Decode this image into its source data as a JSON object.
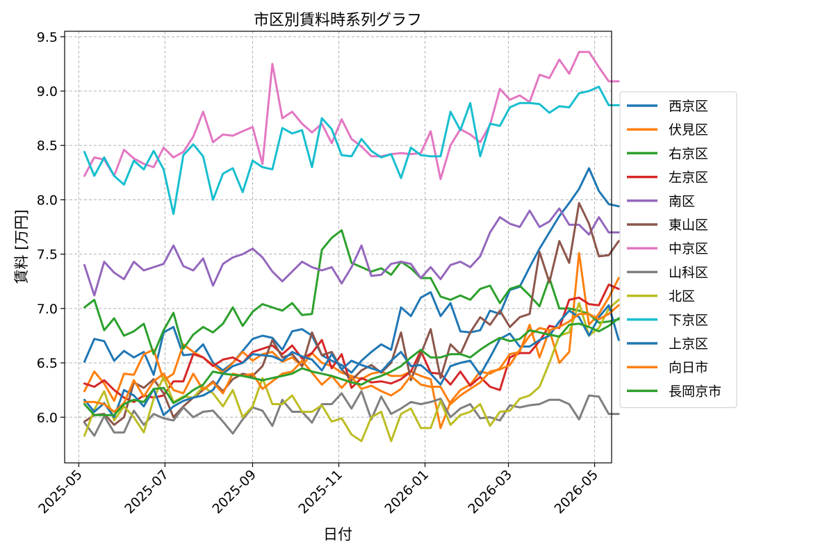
{
  "chart_data": {
    "type": "line",
    "title": "市区別賃料時系列グラフ",
    "xlabel": "日付",
    "ylabel": "賃料 [万円]",
    "xlim": [
      "2025-04-21",
      "2026-05-13"
    ],
    "ylim": [
      5.58,
      9.55
    ],
    "x_ticks": [
      "2025-05",
      "2025-07",
      "2025-09",
      "2025-11",
      "2026-01",
      "2026-03",
      "2026-05"
    ],
    "x_tick_dates": [
      "2025-05-01",
      "2025-07-01",
      "2025-09-01",
      "2025-11-01",
      "2026-01-01",
      "2026-03-01",
      "2026-05-01"
    ],
    "y_ticks": [
      6.0,
      6.5,
      7.0,
      7.5,
      8.0,
      8.5,
      9.0,
      9.5
    ],
    "y_tick_labels": [
      "6.0",
      "6.5",
      "7.0",
      "7.5",
      "8.0",
      "8.5",
      "9.0",
      "9.5"
    ],
    "grid": true,
    "legend_position": "right-outside",
    "x_start": "2025-05-05",
    "x_step_days": 7,
    "series": [
      {
        "name": "西京区",
        "color": "#1f77b4",
        "values": [
          6.51,
          6.72,
          6.7,
          6.52,
          6.61,
          6.55,
          6.6,
          6.39,
          6.78,
          6.83,
          6.57,
          6.58,
          6.67,
          6.5,
          6.43,
          6.5,
          6.61,
          6.72,
          6.75,
          6.73,
          6.62,
          6.79,
          6.81,
          6.75,
          6.57,
          6.52,
          6.48,
          6.41,
          6.52,
          6.6,
          6.67,
          6.62,
          7.01,
          6.93,
          7.1,
          7.15,
          6.93,
          7.05,
          6.79,
          6.78,
          6.8,
          6.98,
          6.95,
          7.17,
          7.2,
          7.38,
          7.55,
          7.7,
          7.85,
          7.97,
          8.1,
          8.29,
          8.08,
          7.96,
          7.94
        ]
      },
      {
        "name": "伏見区",
        "color": "#ff7f0e",
        "values": [
          6.24,
          6.42,
          6.31,
          6.15,
          6.4,
          6.39,
          6.58,
          6.62,
          6.34,
          6.4,
          6.67,
          6.6,
          6.55,
          6.48,
          6.41,
          6.5,
          6.6,
          6.52,
          6.58,
          6.6,
          6.51,
          6.55,
          6.47,
          6.59,
          6.5,
          6.47,
          6.41,
          6.38,
          6.35,
          6.4,
          6.42,
          6.38,
          6.38,
          6.42,
          6.38,
          6.35,
          5.9,
          6.14,
          6.25,
          6.3,
          6.42,
          6.4,
          6.45,
          6.58,
          6.6,
          6.85,
          6.55,
          6.8,
          6.5,
          6.6,
          7.51,
          6.85,
          6.95,
          7.1,
          7.28
        ]
      },
      {
        "name": "右京区",
        "color": "#2ca02c",
        "values": [
          7.01,
          7.08,
          6.8,
          6.91,
          6.75,
          6.79,
          6.86,
          6.58,
          6.8,
          6.96,
          6.63,
          6.76,
          6.83,
          6.78,
          6.86,
          7.01,
          6.84,
          6.97,
          7.04,
          7.01,
          6.98,
          7.05,
          6.94,
          6.95,
          7.54,
          7.65,
          7.72,
          7.42,
          7.38,
          7.34,
          7.37,
          7.31,
          7.43,
          7.37,
          7.28,
          7.28,
          7.11,
          7.08,
          7.12,
          7.08,
          7.18,
          7.21,
          7.05,
          7.18,
          7.21,
          7.12,
          7.02,
          7.28,
          7.0,
          7.0,
          6.98,
          6.95,
          6.87,
          6.88,
          6.9
        ]
      },
      {
        "name": "左京区",
        "color": "#d62728",
        "values": [
          6.31,
          6.28,
          6.34,
          6.25,
          6.18,
          6.14,
          6.2,
          6.18,
          6.2,
          6.33,
          6.33,
          6.58,
          6.55,
          6.47,
          6.53,
          6.55,
          6.5,
          6.6,
          6.63,
          6.66,
          6.58,
          6.66,
          6.54,
          6.59,
          6.71,
          6.45,
          6.58,
          6.27,
          6.36,
          6.32,
          6.33,
          6.31,
          6.35,
          6.42,
          6.61,
          6.41,
          6.4,
          6.3,
          6.42,
          6.29,
          6.37,
          6.28,
          6.25,
          6.55,
          6.59,
          6.59,
          6.7,
          6.84,
          6.82,
          7.08,
          7.1,
          7.04,
          7.03,
          7.22,
          7.18
        ]
      },
      {
        "name": "南区",
        "color": "#9467bd",
        "values": [
          7.4,
          7.12,
          7.43,
          7.33,
          7.27,
          7.43,
          7.35,
          7.38,
          7.41,
          7.58,
          7.39,
          7.35,
          7.46,
          7.21,
          7.41,
          7.47,
          7.5,
          7.55,
          7.47,
          7.34,
          7.25,
          7.34,
          7.43,
          7.38,
          7.35,
          7.38,
          7.23,
          7.38,
          7.58,
          7.3,
          7.31,
          7.41,
          7.43,
          7.41,
          7.28,
          7.38,
          7.27,
          7.4,
          7.43,
          7.38,
          7.48,
          7.7,
          7.84,
          7.78,
          7.75,
          7.9,
          7.75,
          7.8,
          7.92,
          7.77,
          7.77,
          7.68,
          7.84,
          7.7,
          7.7
        ]
      },
      {
        "name": "東山区",
        "color": "#8c564b",
        "values": [
          5.96,
          6.02,
          6.03,
          5.93,
          6.0,
          6.32,
          6.27,
          6.35,
          6.22,
          6.0,
          6.1,
          6.18,
          6.25,
          6.33,
          6.24,
          6.35,
          6.4,
          6.38,
          6.47,
          6.71,
          6.55,
          6.58,
          6.47,
          6.78,
          6.57,
          6.6,
          6.44,
          6.34,
          6.43,
          6.48,
          6.41,
          6.5,
          6.78,
          6.34,
          6.58,
          6.81,
          6.36,
          6.67,
          6.58,
          6.78,
          6.92,
          6.85,
          6.98,
          6.83,
          6.92,
          6.95,
          7.52,
          7.24,
          7.62,
          7.42,
          7.97,
          7.78,
          7.48,
          7.49,
          7.62
        ]
      },
      {
        "name": "中京区",
        "color": "#e377c2",
        "values": [
          8.22,
          8.39,
          8.37,
          8.22,
          8.46,
          8.38,
          8.33,
          8.3,
          8.48,
          8.39,
          8.44,
          8.58,
          8.81,
          8.53,
          8.6,
          8.59,
          8.63,
          8.67,
          8.33,
          9.25,
          8.75,
          8.81,
          8.7,
          8.62,
          8.7,
          8.52,
          8.74,
          8.56,
          8.49,
          8.4,
          8.4,
          8.42,
          8.43,
          8.42,
          8.43,
          8.63,
          8.19,
          8.5,
          8.65,
          8.6,
          8.53,
          8.69,
          9.02,
          8.92,
          8.96,
          8.9,
          9.15,
          9.12,
          9.29,
          9.16,
          9.36,
          9.36,
          9.22,
          9.09,
          9.09
        ]
      },
      {
        "name": "山科区",
        "color": "#7f7f7f",
        "values": [
          5.95,
          5.83,
          6.01,
          5.86,
          5.86,
          6.06,
          5.93,
          6.03,
          5.99,
          5.97,
          6.09,
          6.0,
          6.05,
          6.06,
          5.96,
          5.85,
          5.98,
          6.09,
          6.06,
          5.92,
          6.16,
          6.05,
          6.05,
          5.95,
          6.12,
          6.12,
          6.22,
          6.08,
          6.24,
          5.98,
          6.19,
          6.03,
          6.08,
          6.14,
          6.12,
          6.14,
          6.17,
          6.0,
          6.08,
          6.12,
          5.99,
          6.0,
          5.97,
          6.11,
          6.09,
          6.11,
          6.12,
          6.16,
          6.16,
          6.12,
          5.98,
          6.2,
          6.19,
          6.03,
          6.03
        ]
      },
      {
        "name": "北区",
        "color": "#bcbd22",
        "values": [
          5.83,
          6.07,
          6.24,
          5.97,
          6.1,
          6.0,
          5.86,
          6.17,
          6.37,
          6.14,
          6.19,
          6.18,
          6.28,
          6.22,
          6.1,
          6.25,
          6.0,
          6.1,
          6.36,
          6.12,
          6.12,
          6.2,
          6.05,
          6.05,
          6.11,
          5.96,
          5.99,
          5.84,
          5.78,
          6.0,
          6.05,
          5.78,
          6.03,
          6.08,
          5.9,
          5.9,
          6.15,
          5.93,
          6.02,
          6.05,
          6.12,
          5.92,
          6.05,
          6.06,
          6.17,
          6.2,
          6.28,
          6.5,
          6.75,
          6.78,
          7.05,
          6.75,
          6.82,
          7.0,
          7.08
        ]
      },
      {
        "name": "下京区",
        "color": "#17becf",
        "values": [
          8.44,
          8.22,
          8.39,
          8.22,
          8.14,
          8.36,
          8.28,
          8.45,
          8.28,
          7.87,
          8.41,
          8.51,
          8.4,
          8.0,
          8.24,
          8.29,
          8.07,
          8.36,
          8.3,
          8.28,
          8.66,
          8.61,
          8.64,
          8.3,
          8.75,
          8.65,
          8.41,
          8.4,
          8.56,
          8.45,
          8.39,
          8.42,
          8.2,
          8.48,
          8.41,
          8.4,
          8.4,
          8.81,
          8.64,
          8.89,
          8.4,
          8.7,
          8.68,
          8.85,
          8.89,
          8.89,
          8.88,
          8.8,
          8.86,
          8.85,
          8.98,
          9.0,
          9.04,
          8.87,
          8.87
        ]
      },
      {
        "name": "上京区",
        "color": "#1f77b4",
        "values": [
          6.16,
          6.05,
          6.13,
          6.0,
          6.25,
          6.2,
          6.1,
          6.26,
          6.02,
          6.1,
          6.15,
          6.18,
          6.2,
          6.25,
          6.4,
          6.47,
          6.5,
          6.58,
          6.57,
          6.56,
          6.52,
          6.6,
          6.56,
          6.53,
          6.43,
          6.58,
          6.44,
          6.52,
          6.48,
          6.45,
          6.42,
          6.52,
          6.6,
          6.47,
          6.48,
          6.4,
          6.3,
          6.47,
          6.5,
          6.52,
          6.39,
          6.55,
          6.72,
          6.77,
          6.65,
          6.65,
          6.71,
          6.75,
          6.88,
          6.98,
          6.92,
          6.75,
          6.92,
          7.03,
          6.71
        ]
      },
      {
        "name": "向日市",
        "color": "#ff7f0e",
        "values": [
          6.14,
          6.14,
          6.12,
          6.05,
          6.13,
          6.34,
          6.19,
          6.33,
          6.4,
          6.25,
          6.22,
          6.4,
          6.25,
          6.32,
          6.22,
          6.4,
          6.38,
          6.4,
          6.26,
          6.33,
          6.4,
          6.42,
          6.52,
          6.41,
          6.3,
          6.38,
          6.27,
          6.37,
          6.26,
          6.29,
          6.24,
          6.2,
          6.26,
          6.38,
          6.3,
          6.28,
          6.28,
          6.12,
          6.2,
          6.26,
          6.32,
          6.42,
          6.44,
          6.48,
          6.62,
          6.75,
          6.82,
          6.8,
          6.83,
          6.88,
          6.95,
          6.95,
          6.9,
          6.95,
          7.03
        ]
      },
      {
        "name": "長岡京市",
        "color": "#2ca02c",
        "values": [
          6.12,
          6.02,
          6.02,
          6.02,
          6.12,
          6.16,
          6.14,
          6.26,
          6.27,
          6.13,
          6.18,
          6.25,
          6.3,
          6.42,
          6.4,
          6.39,
          6.38,
          6.36,
          6.34,
          6.36,
          6.38,
          6.4,
          6.45,
          6.42,
          6.4,
          6.38,
          6.35,
          6.32,
          6.3,
          6.35,
          6.38,
          6.42,
          6.47,
          6.55,
          6.62,
          6.55,
          6.55,
          6.58,
          6.58,
          6.55,
          6.62,
          6.68,
          6.73,
          6.7,
          6.72,
          6.8,
          6.78,
          6.76,
          6.74,
          6.85,
          6.86,
          6.83,
          6.79,
          6.84,
          6.91
        ]
      }
    ]
  }
}
